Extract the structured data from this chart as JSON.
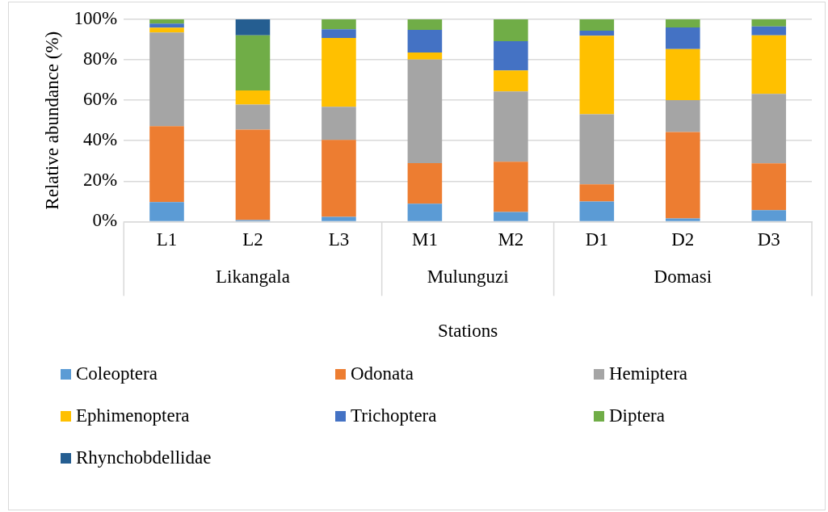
{
  "chart_data": {
    "type": "bar",
    "stacked": true,
    "xlabel": "Stations",
    "ylabel": "Relative abundance (%)",
    "categories": [
      "L1",
      "L2",
      "L3",
      "M1",
      "M2",
      "D1",
      "D2",
      "D3"
    ],
    "series": [
      {
        "name": "Coleoptera",
        "color": "#5b9bd5",
        "values": [
          9.6,
          0.8,
          2.4,
          8.8,
          4.8,
          9.9,
          1.6,
          5.7
        ]
      },
      {
        "name": "Odonata",
        "color": "#ed7d31",
        "values": [
          37.6,
          44.7,
          38,
          20.1,
          24.8,
          8.5,
          42.7,
          23.1
        ]
      },
      {
        "name": "Hemiptera",
        "color": "#a5a5a5",
        "values": [
          46.3,
          12.4,
          16.4,
          51.2,
          34.8,
          34.7,
          15.8,
          34.4
        ]
      },
      {
        "name": "Ephimenoptera",
        "color": "#ffc000",
        "values": [
          2.4,
          7.0,
          34,
          3.5,
          10.3,
          38.8,
          25.2,
          28.9
        ]
      },
      {
        "name": "Trichoptera",
        "color": "#4472c4",
        "values": [
          2.0,
          0,
          4.3,
          11.2,
          14.5,
          2.5,
          10.7,
          4.4
        ]
      },
      {
        "name": "Diptera",
        "color": "#70ad47",
        "values": [
          2.1,
          27.2,
          4.9,
          5.2,
          10.8,
          5.6,
          4.0,
          3.5
        ]
      },
      {
        "name": "Rhynchobdellidae",
        "color": "#255e91",
        "values": [
          0,
          7.9,
          0,
          0,
          0,
          0,
          0,
          0
        ]
      }
    ],
    "ylim": [
      0,
      100
    ],
    "yticks": [
      {
        "value": 0,
        "label": "0%"
      },
      {
        "value": 20,
        "label": "20%"
      },
      {
        "value": 40,
        "label": "40%"
      },
      {
        "value": 60,
        "label": "60%"
      },
      {
        "value": 80,
        "label": "80%"
      },
      {
        "value": 100,
        "label": "100%"
      }
    ],
    "grid": "y",
    "legend": "bottom",
    "annotations": [
      "Likangala",
      "Mulunguzi",
      "Domasi"
    ]
  }
}
